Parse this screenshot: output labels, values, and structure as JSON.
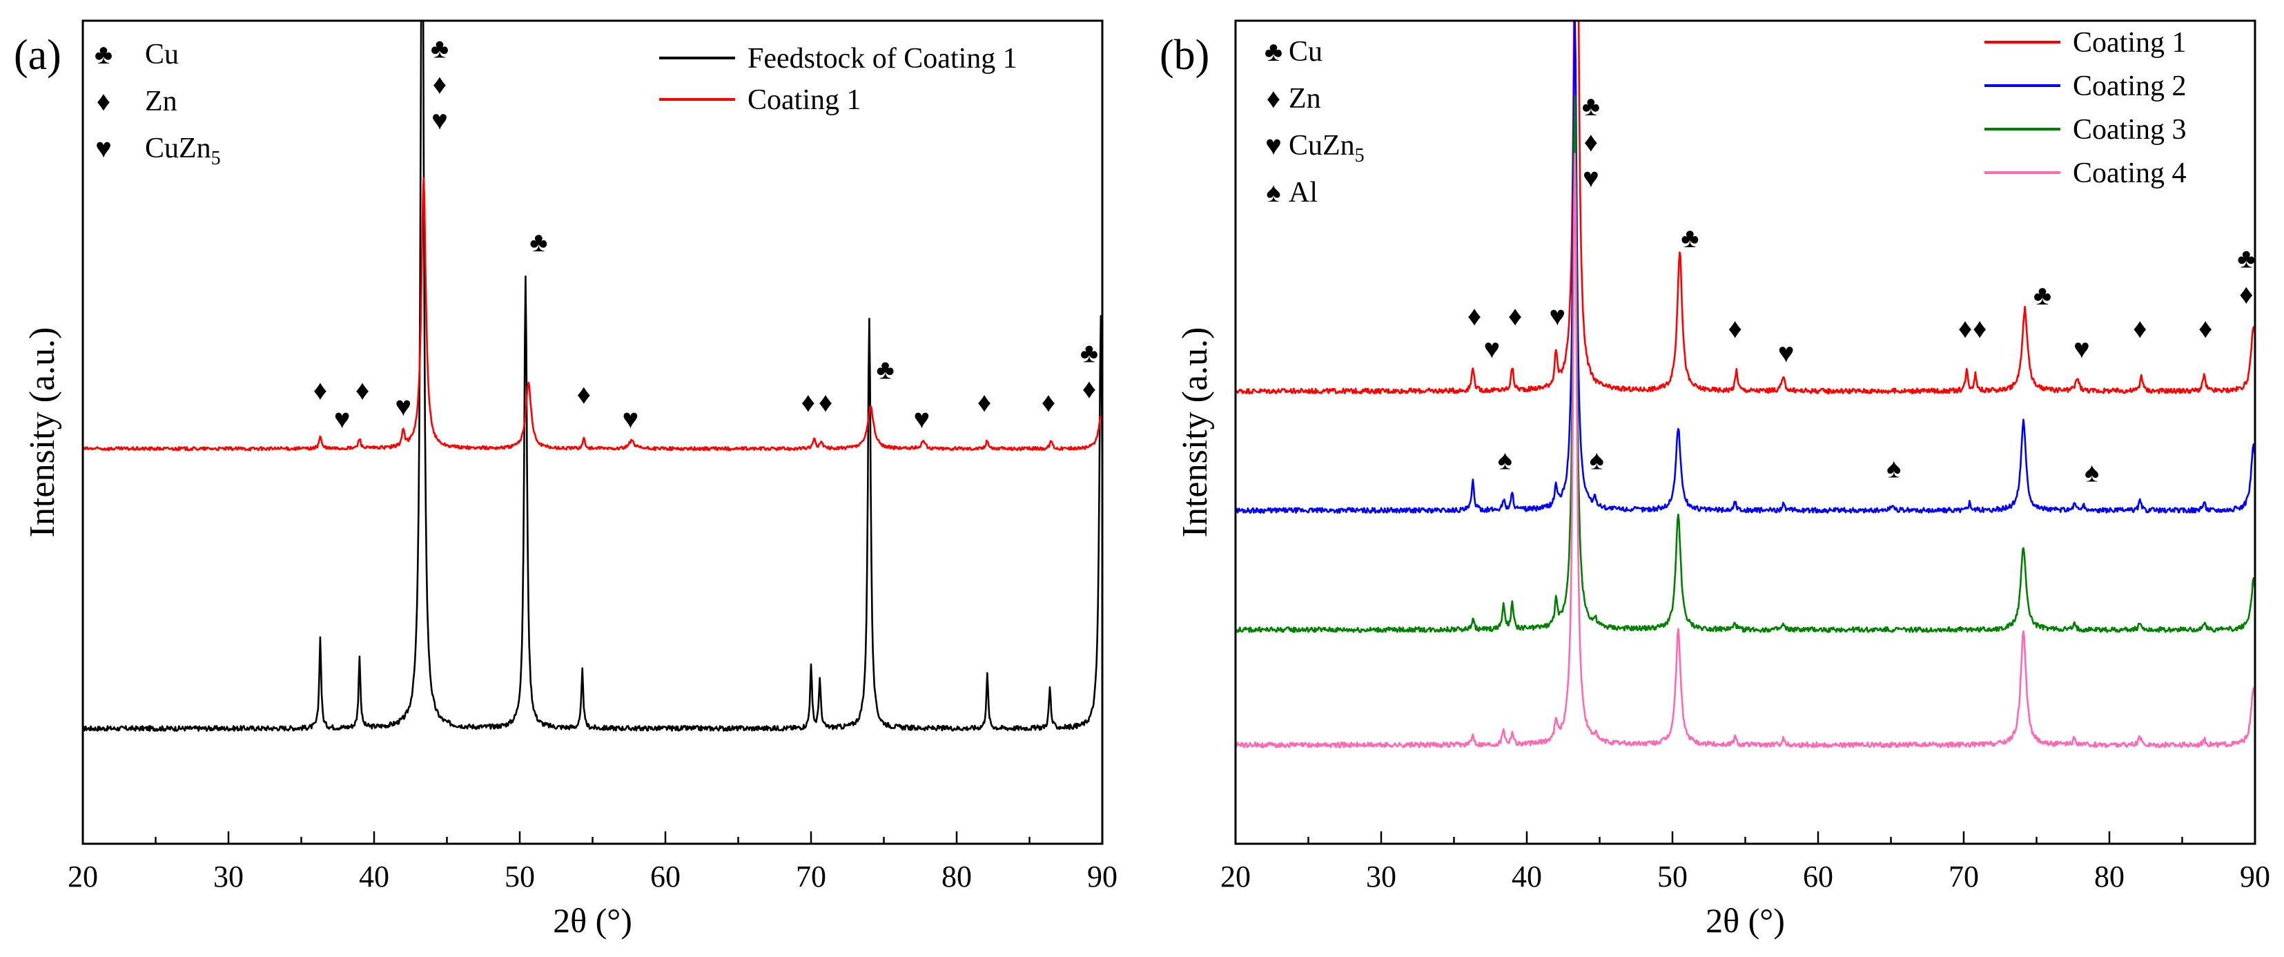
{
  "chart_data": [
    {
      "panel_label": "(a)",
      "type": "line",
      "xlabel": "2θ (°)",
      "ylabel": "Intensity (a.u.)",
      "xlim": [
        20,
        90
      ],
      "xticks": [
        "20",
        "30",
        "40",
        "50",
        "60",
        "70",
        "80",
        "90"
      ],
      "y_ticks_shown": false,
      "phase_legend": [
        {
          "symbol": "♣",
          "label": "Cu"
        },
        {
          "symbol": "♦",
          "label": "Zn"
        },
        {
          "symbol": "♥",
          "label": "CuZn",
          "sub": "5"
        }
      ],
      "legend_position": "top-right",
      "series": [
        {
          "name": "Feedstock of Coating 1",
          "color": "#000000",
          "baseline": 0.14,
          "noise": 0.003,
          "peaks": [
            [
              36.3,
              0.11,
              0.08
            ],
            [
              39.0,
              0.085,
              0.08
            ],
            [
              43.3,
              1.1,
              0.14
            ],
            [
              50.4,
              0.55,
              0.12
            ],
            [
              54.3,
              0.07,
              0.08
            ],
            [
              70.0,
              0.075,
              0.08
            ],
            [
              70.6,
              0.06,
              0.08
            ],
            [
              74.0,
              0.5,
              0.12
            ],
            [
              82.1,
              0.065,
              0.08
            ],
            [
              86.4,
              0.05,
              0.08
            ],
            [
              89.9,
              0.5,
              0.13
            ]
          ]
        },
        {
          "name": "Coating 1",
          "color": "#ff0000",
          "baseline": 0.48,
          "noise": 0.002,
          "peaks": [
            [
              36.3,
              0.015,
              0.1
            ],
            [
              39.0,
              0.012,
              0.1
            ],
            [
              42.0,
              0.02,
              0.1
            ],
            [
              43.4,
              0.33,
              0.18
            ],
            [
              50.6,
              0.08,
              0.22
            ],
            [
              54.4,
              0.012,
              0.1
            ],
            [
              57.7,
              0.01,
              0.2
            ],
            [
              70.2,
              0.012,
              0.1
            ],
            [
              70.7,
              0.01,
              0.1
            ],
            [
              74.1,
              0.05,
              0.25
            ],
            [
              77.7,
              0.01,
              0.15
            ],
            [
              82.1,
              0.01,
              0.1
            ],
            [
              86.5,
              0.01,
              0.1
            ],
            [
              89.9,
              0.04,
              0.2
            ]
          ]
        }
      ],
      "annotations": [
        {
          "x": 36.3,
          "h": 0.54,
          "symbols": [
            "♦"
          ]
        },
        {
          "x": 37.8,
          "h": 0.505,
          "symbols": [
            "♥"
          ]
        },
        {
          "x": 39.2,
          "h": 0.54,
          "symbols": [
            "♦"
          ]
        },
        {
          "x": 42.0,
          "h": 0.52,
          "symbols": [
            "♥"
          ]
        },
        {
          "x": 44.5,
          "h": 0.955,
          "symbols": [
            "♣",
            "♦",
            "♥"
          ]
        },
        {
          "x": 51.3,
          "h": 0.72,
          "symbols": [
            "♣"
          ]
        },
        {
          "x": 54.4,
          "h": 0.535,
          "symbols": [
            "♦"
          ]
        },
        {
          "x": 57.6,
          "h": 0.505,
          "symbols": [
            "♥"
          ]
        },
        {
          "x": 69.8,
          "h": 0.525,
          "symbols": [
            "♦"
          ]
        },
        {
          "x": 71.0,
          "h": 0.525,
          "symbols": [
            "♦"
          ]
        },
        {
          "x": 75.1,
          "h": 0.565,
          "symbols": [
            "♣"
          ]
        },
        {
          "x": 77.6,
          "h": 0.505,
          "symbols": [
            "♥"
          ]
        },
        {
          "x": 81.9,
          "h": 0.525,
          "symbols": [
            "♦"
          ]
        },
        {
          "x": 86.3,
          "h": 0.525,
          "symbols": [
            "♦"
          ]
        },
        {
          "x": 89.1,
          "h": 0.585,
          "symbols": [
            "♣",
            "♦"
          ]
        }
      ]
    },
    {
      "panel_label": "(b)",
      "type": "line",
      "xlabel": "2θ (°)",
      "ylabel": "Intensity (a.u.)",
      "xlim": [
        20,
        90
      ],
      "xticks": [
        "20",
        "30",
        "40",
        "50",
        "60",
        "70",
        "80",
        "90"
      ],
      "y_ticks_shown": false,
      "phase_legend": [
        {
          "symbol": "♣",
          "label": "Cu"
        },
        {
          "symbol": "♦",
          "label": "Zn"
        },
        {
          "symbol": "♥",
          "label": "CuZn",
          "sub": "5"
        },
        {
          "symbol": "♠",
          "label": "Al"
        }
      ],
      "legend_position": "top-right",
      "series": [
        {
          "name": "Coating 1",
          "color": "#ff0000",
          "baseline": 0.55,
          "noise": 0.003,
          "peaks": [
            [
              36.3,
              0.03,
              0.1
            ],
            [
              39.0,
              0.028,
              0.1
            ],
            [
              42.0,
              0.04,
              0.1
            ],
            [
              43.4,
              0.9,
              0.16
            ],
            [
              50.5,
              0.17,
              0.2
            ],
            [
              54.4,
              0.025,
              0.1
            ],
            [
              57.6,
              0.015,
              0.15
            ],
            [
              70.2,
              0.025,
              0.1
            ],
            [
              70.8,
              0.02,
              0.1
            ],
            [
              74.2,
              0.1,
              0.22
            ],
            [
              77.8,
              0.015,
              0.15
            ],
            [
              82.2,
              0.02,
              0.1
            ],
            [
              86.5,
              0.02,
              0.1
            ],
            [
              89.9,
              0.08,
              0.2
            ]
          ]
        },
        {
          "name": "Coating 2",
          "color": "#0000ff",
          "baseline": 0.405,
          "noise": 0.003,
          "peaks": [
            [
              36.3,
              0.035,
              0.1
            ],
            [
              38.4,
              0.012,
              0.1
            ],
            [
              39.0,
              0.02,
              0.1
            ],
            [
              42.0,
              0.025,
              0.1
            ],
            [
              43.3,
              0.6,
              0.16
            ],
            [
              44.7,
              0.01,
              0.1
            ],
            [
              50.4,
              0.1,
              0.2
            ],
            [
              54.3,
              0.01,
              0.1
            ],
            [
              57.6,
              0.008,
              0.1
            ],
            [
              65.1,
              0.006,
              0.15
            ],
            [
              70.4,
              0.01,
              0.1
            ],
            [
              74.1,
              0.11,
              0.2
            ],
            [
              77.6,
              0.008,
              0.1
            ],
            [
              78.2,
              0.006,
              0.1
            ],
            [
              82.1,
              0.012,
              0.1
            ],
            [
              86.5,
              0.01,
              0.1
            ],
            [
              89.9,
              0.08,
              0.2
            ]
          ]
        },
        {
          "name": "Coating 3",
          "color": "#008000",
          "baseline": 0.26,
          "noise": 0.003,
          "peaks": [
            [
              36.3,
              0.012,
              0.1
            ],
            [
              38.4,
              0.03,
              0.1
            ],
            [
              39.0,
              0.03,
              0.1
            ],
            [
              42.0,
              0.03,
              0.1
            ],
            [
              43.3,
              0.65,
              0.16
            ],
            [
              44.7,
              0.008,
              0.1
            ],
            [
              50.4,
              0.14,
              0.2
            ],
            [
              54.3,
              0.008,
              0.1
            ],
            [
              57.6,
              0.006,
              0.1
            ],
            [
              74.1,
              0.1,
              0.22
            ],
            [
              77.6,
              0.006,
              0.1
            ],
            [
              82.1,
              0.01,
              0.1
            ],
            [
              86.5,
              0.008,
              0.1
            ],
            [
              89.9,
              0.06,
              0.2
            ]
          ]
        },
        {
          "name": "Coating 4",
          "color": "#ff69b4",
          "baseline": 0.12,
          "noise": 0.003,
          "peaks": [
            [
              36.3,
              0.012,
              0.1
            ],
            [
              38.4,
              0.02,
              0.1
            ],
            [
              39.0,
              0.015,
              0.1
            ],
            [
              42.0,
              0.025,
              0.1
            ],
            [
              43.3,
              0.72,
              0.16
            ],
            [
              44.7,
              0.008,
              0.1
            ],
            [
              50.4,
              0.14,
              0.2
            ],
            [
              54.3,
              0.01,
              0.1
            ],
            [
              57.6,
              0.008,
              0.1
            ],
            [
              74.1,
              0.14,
              0.22
            ],
            [
              77.6,
              0.008,
              0.1
            ],
            [
              82.1,
              0.01,
              0.1
            ],
            [
              86.5,
              0.008,
              0.1
            ],
            [
              89.9,
              0.07,
              0.2
            ]
          ]
        }
      ],
      "annotations": [
        {
          "x": 36.4,
          "h": 0.63,
          "symbols": [
            "♦"
          ]
        },
        {
          "x": 37.6,
          "h": 0.59,
          "symbols": [
            "♥"
          ]
        },
        {
          "x": 39.2,
          "h": 0.63,
          "symbols": [
            "♦"
          ]
        },
        {
          "x": 42.1,
          "h": 0.63,
          "symbols": [
            "♥"
          ]
        },
        {
          "x": 44.4,
          "h": 0.885,
          "symbols": [
            "♣",
            "♦",
            "♥"
          ]
        },
        {
          "x": 51.2,
          "h": 0.725,
          "symbols": [
            "♣"
          ]
        },
        {
          "x": 54.3,
          "h": 0.615,
          "symbols": [
            "♦"
          ]
        },
        {
          "x": 57.8,
          "h": 0.585,
          "symbols": [
            "♥"
          ]
        },
        {
          "x": 70.1,
          "h": 0.615,
          "symbols": [
            "♦"
          ]
        },
        {
          "x": 71.1,
          "h": 0.615,
          "symbols": [
            "♦"
          ]
        },
        {
          "x": 75.4,
          "h": 0.655,
          "symbols": [
            "♣"
          ]
        },
        {
          "x": 78.1,
          "h": 0.59,
          "symbols": [
            "♥"
          ]
        },
        {
          "x": 82.1,
          "h": 0.615,
          "symbols": [
            "♦"
          ]
        },
        {
          "x": 86.6,
          "h": 0.615,
          "symbols": [
            "♦"
          ]
        },
        {
          "x": 89.4,
          "h": 0.7,
          "symbols": [
            "♣",
            "♦"
          ]
        },
        {
          "x": 38.5,
          "h": 0.455,
          "symbols": [
            "♠"
          ]
        },
        {
          "x": 44.8,
          "h": 0.455,
          "symbols": [
            "♠"
          ]
        },
        {
          "x": 65.2,
          "h": 0.445,
          "symbols": [
            "♠"
          ]
        },
        {
          "x": 78.8,
          "h": 0.44,
          "symbols": [
            "♠"
          ]
        }
      ]
    }
  ]
}
